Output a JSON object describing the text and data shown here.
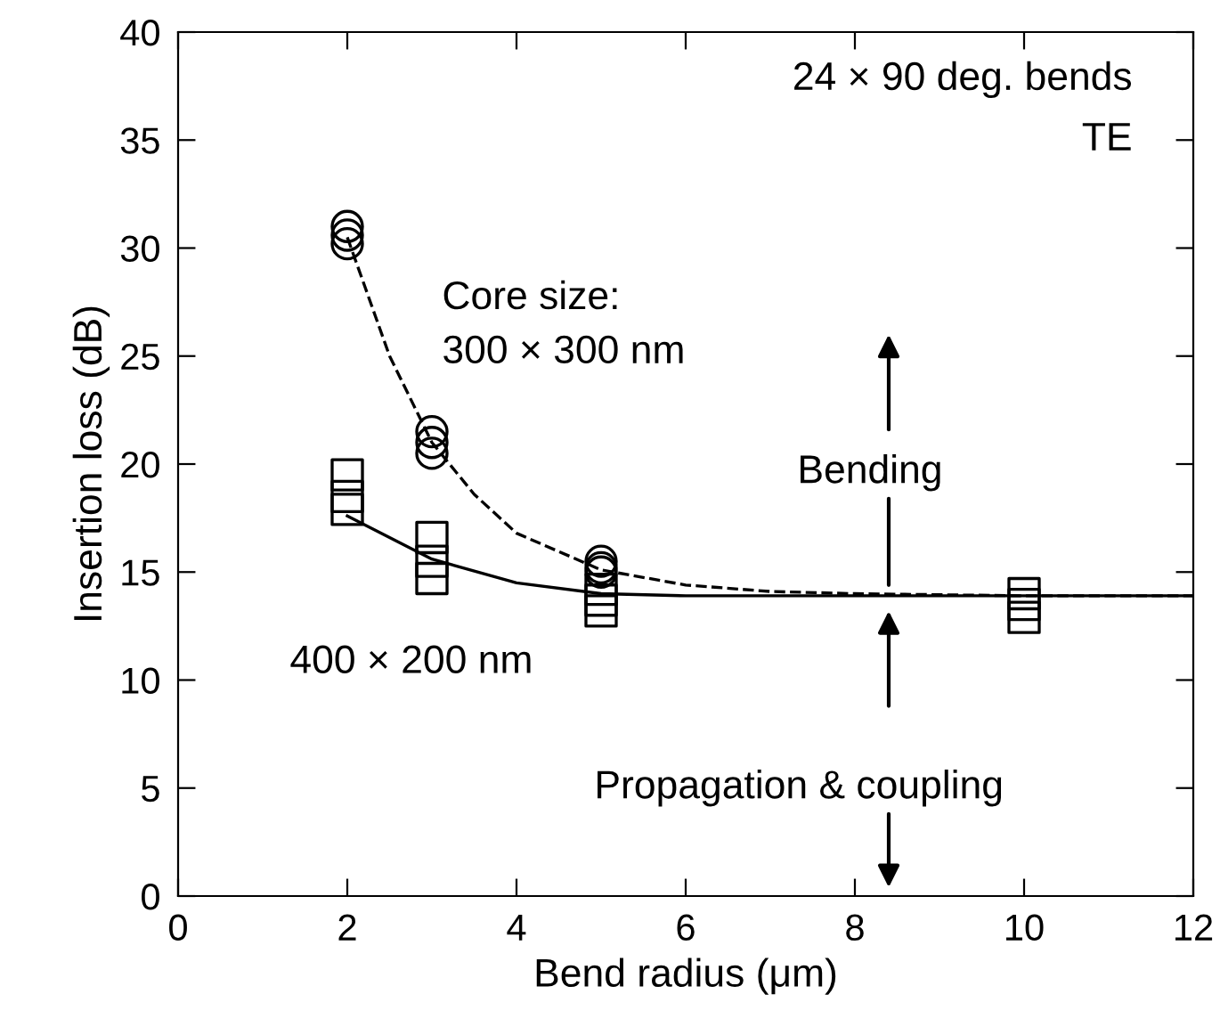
{
  "chart_data": {
    "type": "scatter",
    "xlabel": "Bend radius (μm)",
    "ylabel": "Insertion loss (dB)",
    "xlim": [
      0,
      12
    ],
    "ylim": [
      0,
      40
    ],
    "xticks": [
      0,
      2,
      4,
      6,
      8,
      10,
      12
    ],
    "yticks": [
      0,
      5,
      10,
      15,
      20,
      25,
      30,
      35,
      40
    ],
    "grid": false,
    "annotations": [
      "24 × 90 deg. bends",
      "TE",
      "Core size:\n300 × 300 nm",
      "400 × 200 nm",
      "Bending",
      "Propagation & coupling"
    ],
    "series": [
      {
        "marker": "circle",
        "color": "#000000",
        "x": [
          2,
          2,
          2,
          3,
          3,
          3,
          5,
          5,
          5
        ],
        "values": [
          31.0,
          30.6,
          30.2,
          21.5,
          21.0,
          20.5,
          15.5,
          15.2,
          15.0
        ]
      },
      {
        "marker": "square",
        "color": "#000000",
        "x": [
          2,
          2,
          2,
          3,
          3,
          3,
          5,
          5,
          5,
          10,
          10,
          10
        ],
        "values": [
          19.5,
          18.5,
          17.9,
          16.6,
          15.5,
          14.7,
          14.2,
          13.7,
          13.2,
          14.0,
          13.5,
          12.9
        ]
      },
      {
        "type": "line",
        "line_style": "dashed",
        "color": "#000000",
        "x": [
          2,
          2.5,
          3,
          3.5,
          4,
          5,
          6,
          7,
          8,
          10,
          12
        ],
        "values": [
          30.5,
          25,
          21,
          18.6,
          16.8,
          15.1,
          14.4,
          14.1,
          14.0,
          13.9,
          13.9
        ]
      },
      {
        "type": "line",
        "line_style": "solid",
        "color": "#000000",
        "x": [
          2,
          3,
          4,
          5,
          6,
          8,
          12
        ],
        "values": [
          17.6,
          15.6,
          14.5,
          14.0,
          13.9,
          13.9,
          13.9
        ]
      }
    ]
  }
}
